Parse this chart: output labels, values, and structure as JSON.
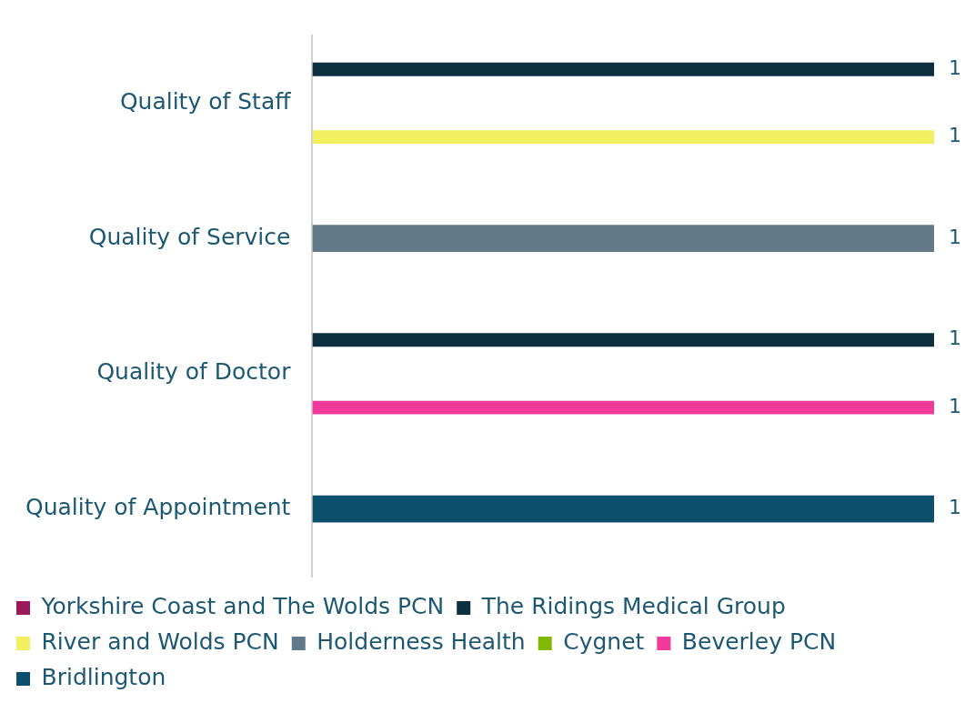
{
  "chart_data": {
    "type": "bar",
    "orientation": "horizontal",
    "tick_labels": "y",
    "data_labels": true,
    "grid": false,
    "legend": "bottom",
    "categories": [
      "Quality of Staff",
      "Quality of Service",
      "Quality of Doctor",
      "Quality of Appointment"
    ],
    "series": [
      {
        "name": "Yorkshire Coast and The Wolds PCN",
        "color": "#9b1b5a",
        "values": [
          null,
          null,
          null,
          null
        ]
      },
      {
        "name": "The Ridings Medical Group",
        "color": "#0d2f3f",
        "values": [
          1,
          null,
          1,
          null
        ]
      },
      {
        "name": "River and Wolds PCN",
        "color": "#f2f060",
        "values": [
          1,
          null,
          null,
          null
        ]
      },
      {
        "name": "Holderness Health",
        "color": "#62798a",
        "values": [
          null,
          1,
          null,
          null
        ]
      },
      {
        "name": "Cygnet",
        "color": "#7fba00",
        "values": [
          null,
          null,
          null,
          null
        ]
      },
      {
        "name": "Beverley PCN",
        "color": "#f0399a",
        "values": [
          null,
          null,
          1,
          null
        ]
      },
      {
        "name": "Bridlington",
        "color": "#0b4f6c",
        "values": [
          null,
          null,
          null,
          1
        ]
      }
    ]
  }
}
